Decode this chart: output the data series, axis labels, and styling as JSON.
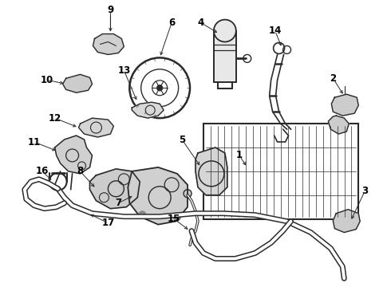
{
  "background_color": "#ffffff",
  "line_color": "#2a2a2a",
  "fig_width": 4.9,
  "fig_height": 3.6,
  "dpi": 100,
  "label_fontsize": 8.5,
  "label_bold": true
}
